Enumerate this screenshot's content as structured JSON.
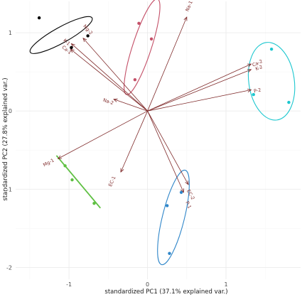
{
  "chart_data": {
    "type": "scatter",
    "subtype": "PCA biplot",
    "xlabel": "standardized PC1 (37.1% explained var.)",
    "ylabel": "standardized PC2 (27.8% explained var.)",
    "xlim": [
      -1.68,
      1.95
    ],
    "ylim": [
      -2.15,
      1.4
    ],
    "x_ticks": [
      -1,
      0,
      1
    ],
    "y_ticks": [
      -2,
      -1,
      0,
      1
    ],
    "grid": true,
    "groups": [
      {
        "color": "#000000",
        "points": [
          {
            "x": -1.38,
            "y": 1.19
          },
          {
            "x": -0.76,
            "y": 0.96
          },
          {
            "x": -0.97,
            "y": 0.81
          }
        ],
        "ellipse": {
          "cx": -1.1,
          "cy": 0.97,
          "rx": 0.45,
          "ry": 0.1,
          "angle_deg": -29
        }
      },
      {
        "color": "#c45068",
        "points": [
          {
            "x": -0.11,
            "y": 1.12
          },
          {
            "x": 0.05,
            "y": 0.92
          },
          {
            "x": -0.16,
            "y": 0.4
          }
        ],
        "ellipse": {
          "cx": -0.07,
          "cy": 0.82,
          "rx": 0.64,
          "ry": 0.12,
          "angle_deg": -72
        }
      },
      {
        "color": "#1cc7cf",
        "points": [
          {
            "x": 1.58,
            "y": 0.79
          },
          {
            "x": 1.35,
            "y": 0.21
          },
          {
            "x": 1.8,
            "y": 0.11
          }
        ],
        "ellipse": {
          "cx": 1.58,
          "cy": 0.38,
          "rx": 0.29,
          "ry": 0.5,
          "angle_deg": -8
        }
      },
      {
        "color": "#2f86c9",
        "points": [
          {
            "x": 0.43,
            "y": -1.04
          },
          {
            "x": 0.25,
            "y": -1.21
          },
          {
            "x": 0.28,
            "y": -1.82
          }
        ],
        "ellipse": {
          "cx": 0.33,
          "cy": -1.36,
          "rx": 0.62,
          "ry": 0.14,
          "angle_deg": -76
        }
      },
      {
        "color": "#5fc043",
        "points": [
          {
            "x": -1.05,
            "y": -0.7
          },
          {
            "x": -0.96,
            "y": -0.88
          },
          {
            "x": -0.68,
            "y": -1.18
          }
        ],
        "segment": {
          "x1": -1.16,
          "y1": -0.57,
          "x2": -0.6,
          "y2": -1.24
        }
      }
    ],
    "arrow_color": "#7f2a2a",
    "loadings": [
      {
        "name": "Mg-2",
        "x": -0.82,
        "y": 0.93,
        "label_x": -0.76,
        "label_y": 1.04
      },
      {
        "name": "K-1",
        "x": -0.97,
        "y": 0.86,
        "label_x": -1.03,
        "label_y": 0.88
      },
      {
        "name": "Ca-1",
        "x": -0.98,
        "y": 0.79,
        "label_x": -1.03,
        "label_y": 0.78
      },
      {
        "name": "Na-1",
        "x": 0.5,
        "y": 1.2,
        "label_x": 0.53,
        "label_y": 1.34
      },
      {
        "name": "Na-2",
        "x": -0.43,
        "y": 0.15,
        "label_x": -0.5,
        "label_y": 0.12
      },
      {
        "name": "Ca-2",
        "x": 1.32,
        "y": 0.6,
        "label_x": 1.4,
        "label_y": 0.61
      },
      {
        "name": "K-2",
        "x": 1.32,
        "y": 0.53,
        "label_x": 1.42,
        "label_y": 0.55
      },
      {
        "name": "P-2",
        "x": 1.32,
        "y": 0.27,
        "label_x": 1.4,
        "label_y": 0.26
      },
      {
        "name": "Mg-1",
        "x": -1.14,
        "y": -0.61,
        "label_x": -1.26,
        "label_y": -0.66
      },
      {
        "name": "EC-1",
        "x": -0.34,
        "y": -0.78,
        "label_x": -0.45,
        "label_y": -0.9
      },
      {
        "name": "EC-2",
        "x": 0.52,
        "y": -0.94,
        "label_x": 0.55,
        "label_y": -1.07
      },
      {
        "name": "P-1",
        "x": 0.46,
        "y": -1.04,
        "label_x": 0.52,
        "label_y": -1.2
      }
    ],
    "legend": "none"
  }
}
